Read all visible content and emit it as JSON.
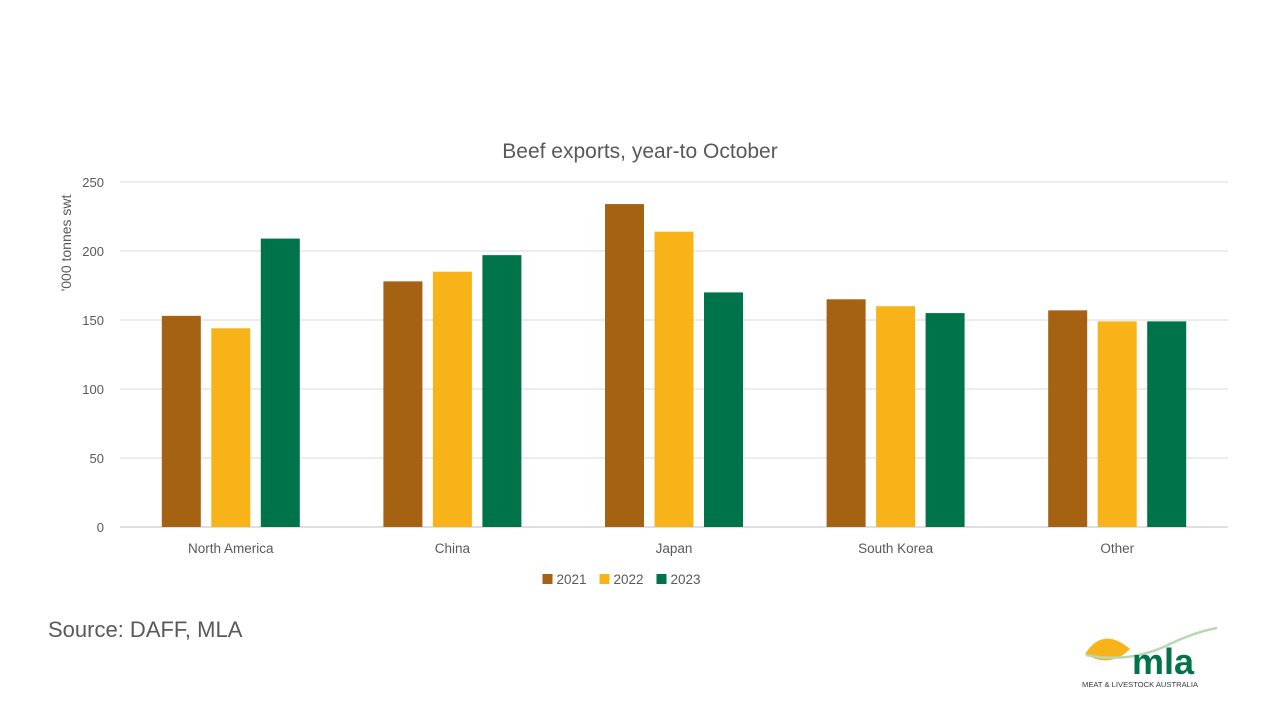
{
  "chart_data": {
    "type": "bar",
    "title": "Beef exports, year-to October",
    "xlabel": "",
    "ylabel": "'000 tonnes swt",
    "categories": [
      "North America",
      "China",
      "Japan",
      "South Korea",
      "Other"
    ],
    "series": [
      {
        "name": "2021",
        "color": "#A46212",
        "values": [
          153,
          178,
          234,
          165,
          157
        ]
      },
      {
        "name": "2022",
        "color": "#F8B319",
        "values": [
          144,
          185,
          214,
          160,
          149
        ]
      },
      {
        "name": "2023",
        "color": "#01734A",
        "values": [
          209,
          197,
          170,
          155,
          149
        ]
      }
    ],
    "ylim": [
      0,
      250
    ],
    "yticks": [
      0,
      50,
      100,
      150,
      200,
      250
    ],
    "grid": true,
    "legend_position": "bottom"
  },
  "footer": {
    "source": "Source: DAFF, MLA"
  },
  "logo": {
    "wordmark": "mla",
    "tagline": "MEAT & LIVESTOCK AUSTRALIA"
  }
}
